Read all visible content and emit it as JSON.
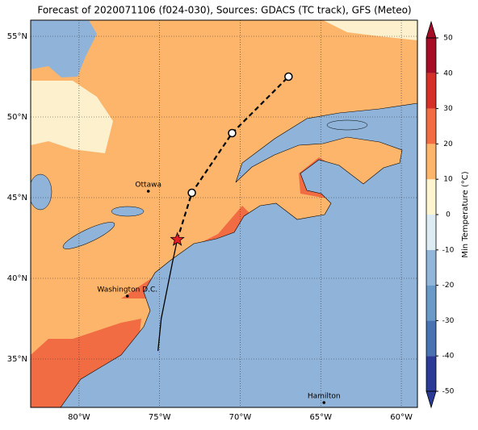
{
  "chart_data": {
    "type": "map",
    "title": "Forecast of 2020071106 (f024-030), Sources: GDACS (TC track), GFS (Meteo)",
    "xlim": [
      -83,
      -59
    ],
    "ylim": [
      32,
      56
    ],
    "xticks": [
      {
        "value": -80,
        "label": "80°W"
      },
      {
        "value": -75,
        "label": "75°W"
      },
      {
        "value": -70,
        "label": "70°W"
      },
      {
        "value": -65,
        "label": "65°W"
      },
      {
        "value": -60,
        "label": "60°W"
      }
    ],
    "yticks": [
      {
        "value": 35,
        "label": "35°N"
      },
      {
        "value": 40,
        "label": "40°N"
      },
      {
        "value": 45,
        "label": "45°N"
      },
      {
        "value": 50,
        "label": "50°N"
      },
      {
        "value": 55,
        "label": "55°N"
      }
    ],
    "grid": true,
    "colorbar": {
      "label": "Min Temperature (°C)",
      "lim": [
        -50,
        50
      ],
      "ticks": [
        -50,
        -40,
        -30,
        -20,
        -10,
        0,
        10,
        20,
        30,
        40,
        50
      ],
      "colors": [
        "#2b3a96",
        "#4a72b3",
        "#6a99c8",
        "#91b6da",
        "#dcecf2",
        "#fdf4d0",
        "#fdb56b",
        "#f26c43",
        "#d43027",
        "#a50d26"
      ]
    },
    "track": {
      "history": {
        "lon": [
          -75.1,
          -74.9,
          -74.5,
          -74.2,
          -73.9
        ],
        "lat": [
          35.5,
          37.5,
          39.5,
          41,
          42.4
        ]
      },
      "forecast": {
        "lon": [
          -73.9,
          -73,
          -70.5,
          -67
        ],
        "lat": [
          42.4,
          45.3,
          49,
          52.5
        ]
      }
    },
    "cities": [
      {
        "name": "Ottawa",
        "lon": -75.7,
        "lat": 45.4
      },
      {
        "name": "Washington D.C.",
        "lon": -77,
        "lat": 38.9
      },
      {
        "name": "Hamilton",
        "lon": -64.8,
        "lat": 32.3
      }
    ]
  }
}
